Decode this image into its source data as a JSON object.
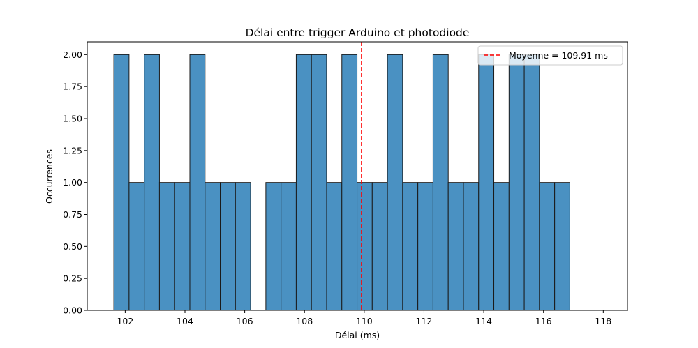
{
  "chart_data": {
    "type": "bar",
    "title": "Délai entre trigger Arduino et photodiode",
    "xlabel": "Délai (ms)",
    "ylabel": "Occurrences",
    "bin_start": 101.62,
    "bin_width": 0.5087,
    "counts": [
      2,
      1,
      2,
      1,
      1,
      2,
      1,
      1,
      1,
      0,
      1,
      1,
      2,
      2,
      1,
      2,
      1,
      1,
      2,
      1,
      1,
      2,
      1,
      1,
      2,
      1,
      2,
      2,
      1,
      1
    ],
    "xlim": [
      100.73,
      118.81
    ],
    "ylim": [
      0,
      2.1
    ],
    "xticks": [
      {
        "value": 102,
        "label": "102"
      },
      {
        "value": 104,
        "label": "104"
      },
      {
        "value": 106,
        "label": "106"
      },
      {
        "value": 108,
        "label": "108"
      },
      {
        "value": 110,
        "label": "110"
      },
      {
        "value": 112,
        "label": "112"
      },
      {
        "value": 114,
        "label": "114"
      },
      {
        "value": 116,
        "label": "116"
      },
      {
        "value": 118,
        "label": "118"
      }
    ],
    "yticks": [
      {
        "value": 0,
        "label": "0.00"
      },
      {
        "value": 0.25,
        "label": "0.25"
      },
      {
        "value": 0.5,
        "label": "0.50"
      },
      {
        "value": 0.75,
        "label": "0.75"
      },
      {
        "value": 1.0,
        "label": "1.00"
      },
      {
        "value": 1.25,
        "label": "1.25"
      },
      {
        "value": 1.5,
        "label": "1.50"
      },
      {
        "value": 1.75,
        "label": "1.75"
      },
      {
        "value": 2.0,
        "label": "2.00"
      }
    ],
    "mean_line": {
      "value": 109.91,
      "label": "Moyenne = 109.91 ms",
      "color": "#ff0000"
    },
    "bar_color": "#4a91c2",
    "bar_edge_color": "#1a1a1a",
    "legend_position": "top-right",
    "grid": false
  }
}
